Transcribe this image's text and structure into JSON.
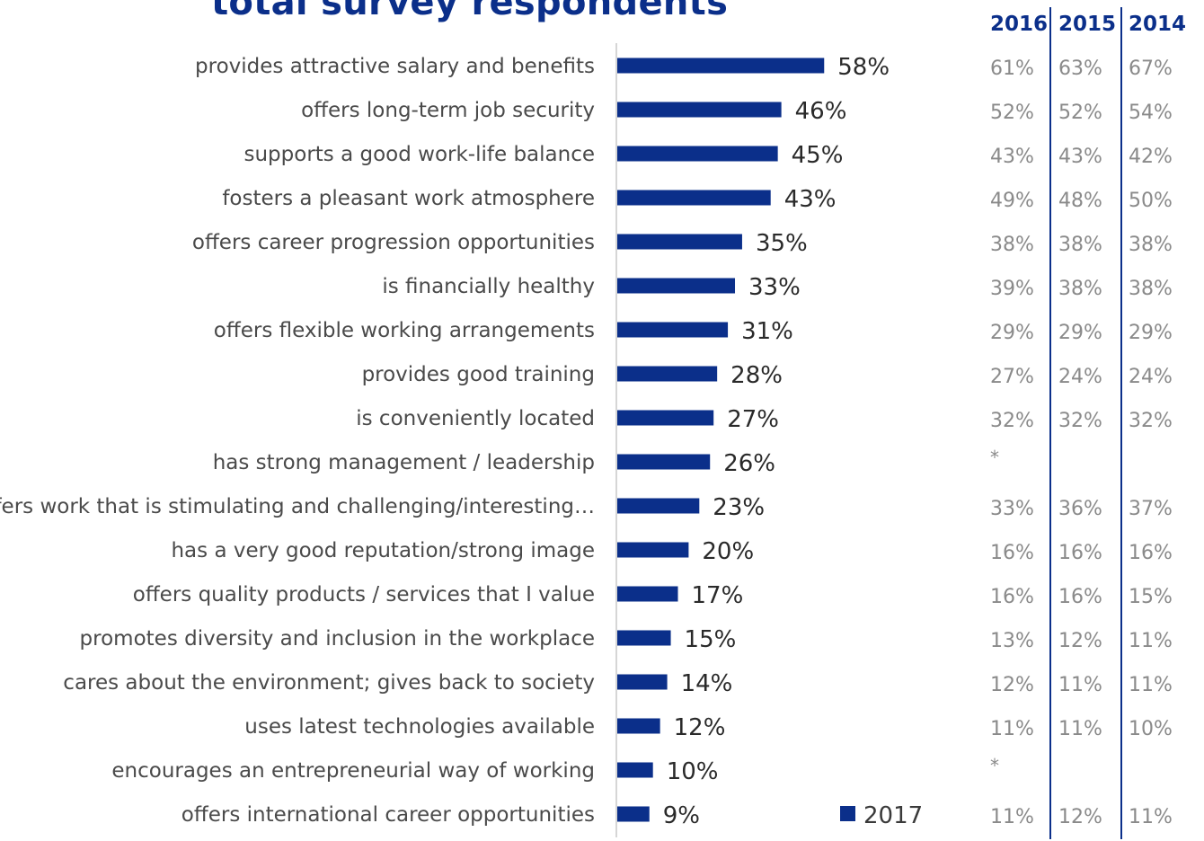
{
  "chart_data": {
    "type": "bar",
    "orientation": "horizontal",
    "title": "total survey respondents",
    "categories": [
      "provides attractive salary and benefits",
      "offers long-term job security",
      "supports a good work-life balance",
      "fosters a pleasant work atmosphere",
      "offers career progression opportunities",
      "is financially healthy",
      "offers flexible working arrangements",
      "provides good training",
      "is conveniently located",
      "has strong management / leadership",
      "offers work that is stimulating and challenging/interesting…",
      "has a very good reputation/strong image",
      "offers quality products / services that I value",
      "promotes diversity and inclusion in the workplace",
      "cares about the environment; gives back to society",
      "uses latest technologies available",
      "encourages an entrepreneurial way of working",
      "offers international career opportunities"
    ],
    "series": [
      {
        "name": "2017",
        "values": [
          58,
          46,
          45,
          43,
          35,
          33,
          31,
          28,
          27,
          26,
          23,
          20,
          17,
          15,
          14,
          12,
          10,
          9
        ],
        "labels": [
          "58%",
          "46%",
          "45%",
          "43%",
          "35%",
          "33%",
          "31%",
          "28%",
          "27%",
          "26%",
          "23%",
          "20%",
          "17%",
          "15%",
          "14%",
          "12%",
          "10%",
          "9%"
        ]
      }
    ],
    "xlim": [
      0,
      100
    ],
    "legend": {
      "position": "bottom-right",
      "entries": [
        "2017"
      ]
    },
    "comparison_table": {
      "years": [
        "2016",
        "2015",
        "2014"
      ],
      "rows": [
        [
          "61%",
          "63%",
          "67%"
        ],
        [
          "52%",
          "52%",
          "54%"
        ],
        [
          "43%",
          "43%",
          "42%"
        ],
        [
          "49%",
          "48%",
          "50%"
        ],
        [
          "38%",
          "38%",
          "38%"
        ],
        [
          "39%",
          "38%",
          "38%"
        ],
        [
          "29%",
          "29%",
          "29%"
        ],
        [
          "27%",
          "24%",
          "24%"
        ],
        [
          "32%",
          "32%",
          "32%"
        ],
        [
          "*",
          "",
          ""
        ],
        [
          "33%",
          "36%",
          "37%"
        ],
        [
          "16%",
          "16%",
          "16%"
        ],
        [
          "16%",
          "16%",
          "15%"
        ],
        [
          "13%",
          "12%",
          "11%"
        ],
        [
          "12%",
          "11%",
          "11%"
        ],
        [
          "11%",
          "11%",
          "10%"
        ],
        [
          "*",
          "",
          ""
        ],
        [
          "11%",
          "12%",
          "11%"
        ]
      ]
    },
    "colors": {
      "bar": "#0b2f8a",
      "title": "#0b2f8a",
      "divider": "#0b2f8a",
      "axis": "#c8c8c8",
      "history_text": "#8a8a8a",
      "category_text": "#4a4a4a"
    }
  }
}
